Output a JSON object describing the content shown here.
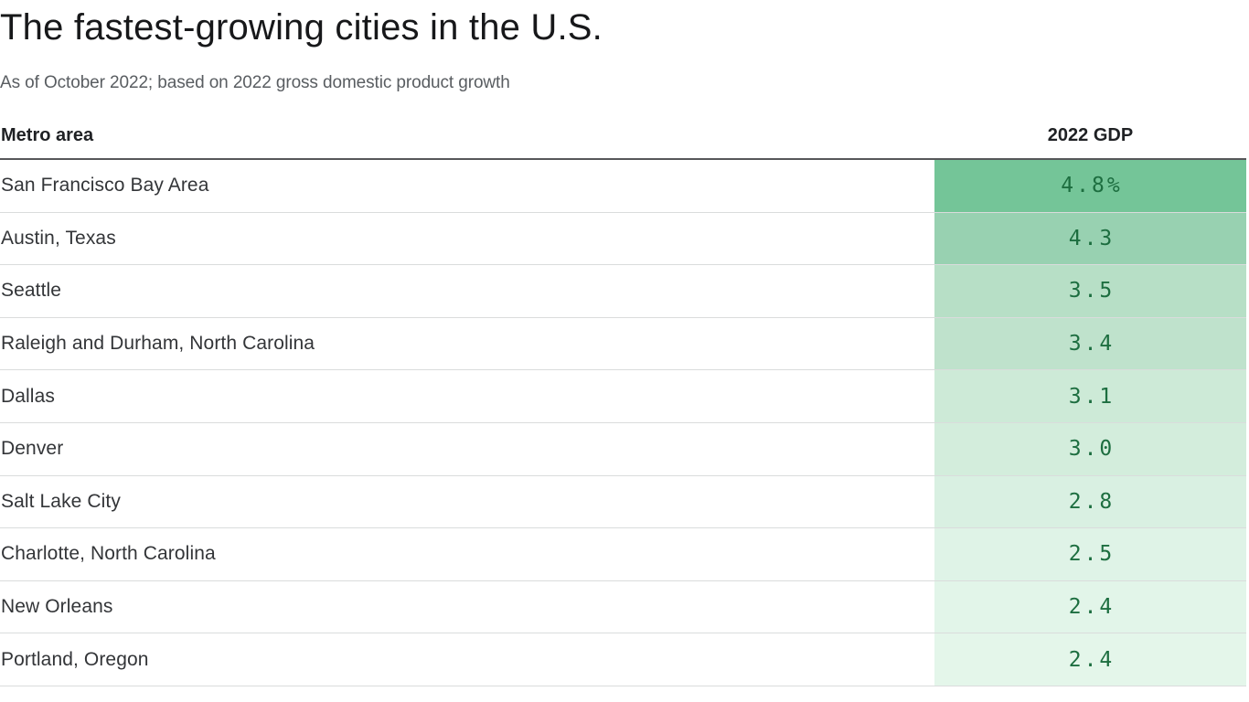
{
  "chart_data": {
    "type": "table",
    "title": "The fastest-growing cities in the U.S.",
    "subtitle": "As of October 2022; based on 2022 gross domestic product growth",
    "columns": [
      "Metro area",
      "2022 GDP"
    ],
    "value_unit": "%",
    "value_range": [
      2.4,
      4.8
    ],
    "value_text_color": "#1d6e40",
    "header_rule_color": "#56575a",
    "row_divider_color": "#dadcdc",
    "rows": [
      {
        "metro": "San Francisco Bay Area",
        "gdp_growth": 4.8,
        "display": "4.8%",
        "cell_color": "#74c598"
      },
      {
        "metro": "Austin, Texas",
        "gdp_growth": 4.3,
        "display": "4.3",
        "cell_color": "#98d1b1"
      },
      {
        "metro": "Seattle",
        "gdp_growth": 3.5,
        "display": "3.5",
        "cell_color": "#b7dfc6"
      },
      {
        "metro": "Raleigh and Durham, North Carolina",
        "gdp_growth": 3.4,
        "display": "3.4",
        "cell_color": "#bfe2cc"
      },
      {
        "metro": "Dallas",
        "gdp_growth": 3.1,
        "display": "3.1",
        "cell_color": "#cdead7"
      },
      {
        "metro": "Denver",
        "gdp_growth": 3.0,
        "display": "3.0",
        "cell_color": "#d3eddc"
      },
      {
        "metro": "Salt Lake City",
        "gdp_growth": 2.8,
        "display": "2.8",
        "cell_color": "#d9f0e2"
      },
      {
        "metro": "Charlotte, North Carolina",
        "gdp_growth": 2.5,
        "display": "2.5",
        "cell_color": "#dff3e7"
      },
      {
        "metro": "New Orleans",
        "gdp_growth": 2.4,
        "display": "2.4",
        "cell_color": "#e2f5e9"
      },
      {
        "metro": "Portland, Oregon",
        "gdp_growth": 2.4,
        "display": "2.4",
        "cell_color": "#e4f6ea"
      }
    ]
  }
}
